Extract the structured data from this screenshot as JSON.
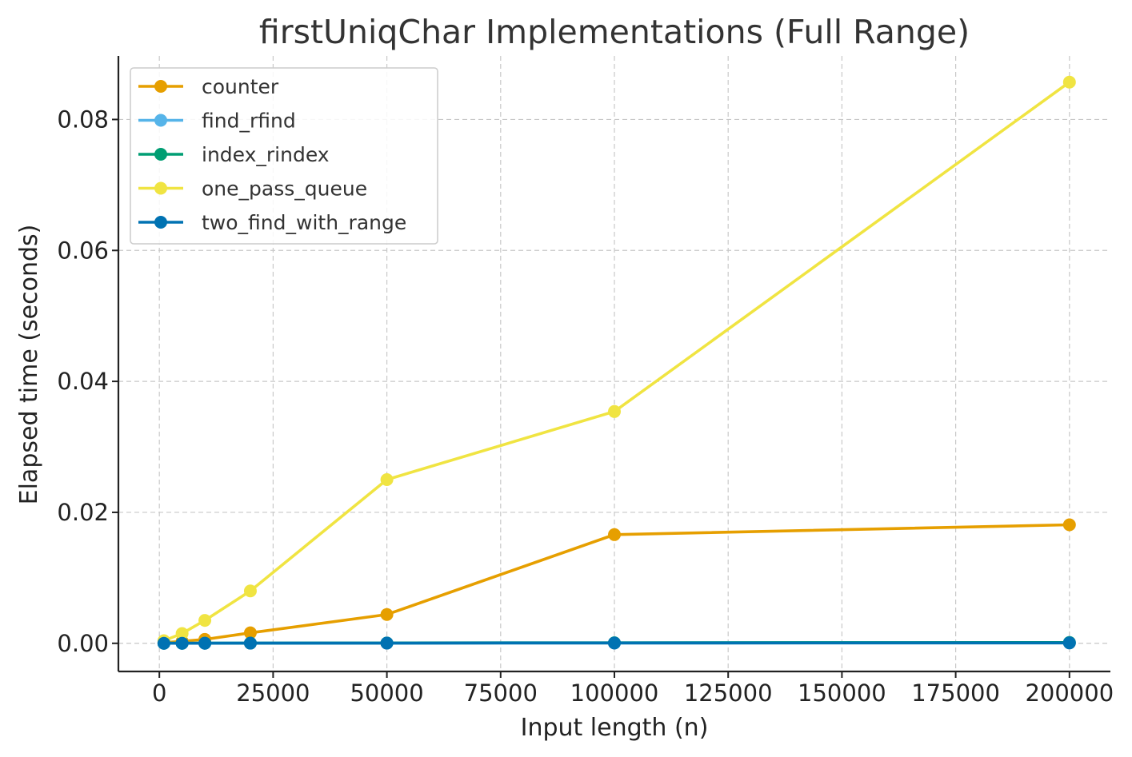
{
  "chart_data": {
    "type": "line",
    "title": "firstUniqChar Implementations (Full Range)",
    "xlabel": "Input length (n)",
    "ylabel": "Elapsed time (seconds)",
    "xlim": [
      -9000,
      209000
    ],
    "ylim": [
      -0.0043,
      0.0897
    ],
    "xticks": [
      0,
      25000,
      50000,
      75000,
      100000,
      125000,
      150000,
      175000,
      200000
    ],
    "xtick_labels": [
      "0",
      "25000",
      "50000",
      "75000",
      "100000",
      "125000",
      "150000",
      "175000",
      "200000"
    ],
    "yticks": [
      0.0,
      0.02,
      0.04,
      0.06,
      0.08
    ],
    "ytick_labels": [
      "0.00",
      "0.02",
      "0.04",
      "0.06",
      "0.08"
    ],
    "grid": true,
    "legend_position": "top-left",
    "x": [
      1000,
      5000,
      10000,
      20000,
      50000,
      100000,
      200000
    ],
    "series": [
      {
        "name": "counter",
        "color": "#E69F00",
        "values": [
          0.0001,
          0.0003,
          0.0006,
          0.0016,
          0.0044,
          0.0166,
          0.0181
        ]
      },
      {
        "name": "find_rfind",
        "color": "#56B4E9",
        "values": [
          1e-05,
          1e-05,
          2e-05,
          3e-05,
          5e-05,
          8e-05,
          0.00012
        ]
      },
      {
        "name": "index_rindex",
        "color": "#009E73",
        "values": [
          1e-05,
          1e-05,
          2e-05,
          3e-05,
          5e-05,
          8e-05,
          0.00012
        ]
      },
      {
        "name": "one_pass_queue",
        "color": "#F0E442",
        "values": [
          0.0004,
          0.0015,
          0.0035,
          0.008,
          0.025,
          0.0354,
          0.0857
        ]
      },
      {
        "name": "two_find_with_range",
        "color": "#0072B2",
        "values": [
          1e-05,
          1e-05,
          1e-05,
          2e-05,
          3e-05,
          4e-05,
          6e-05
        ]
      }
    ]
  }
}
